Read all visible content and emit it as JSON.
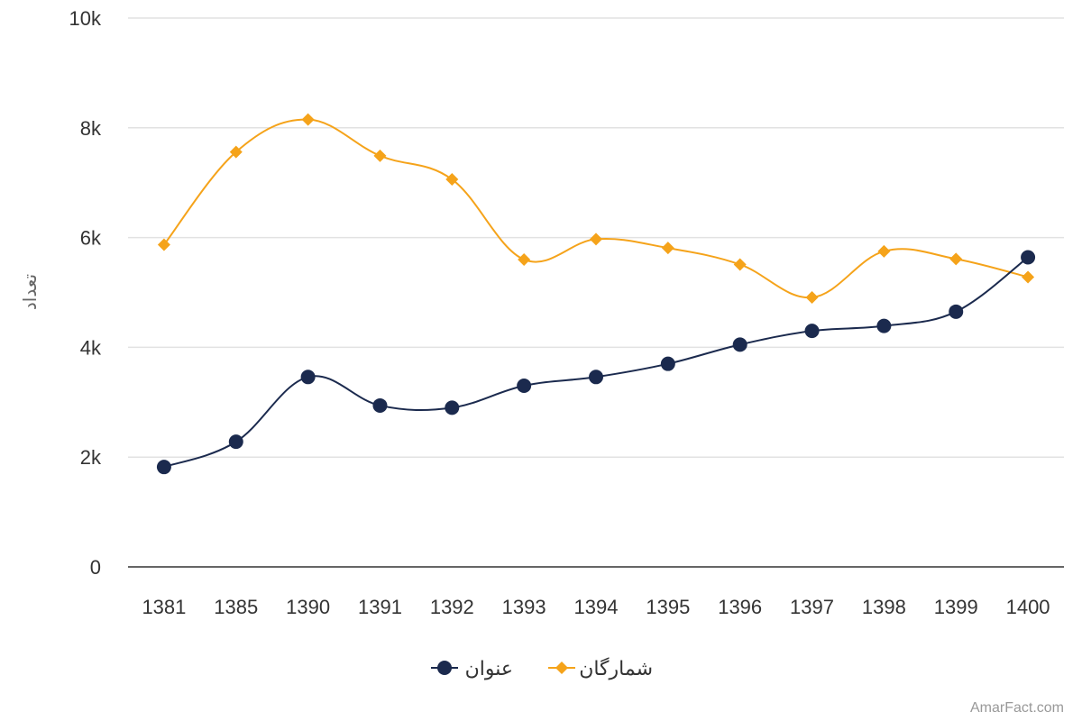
{
  "chart_data": {
    "type": "line",
    "title": "",
    "xlabel": "",
    "ylabel": "تعداد",
    "categories": [
      "1381",
      "1385",
      "1390",
      "1391",
      "1392",
      "1393",
      "1394",
      "1395",
      "1396",
      "1397",
      "1398",
      "1399",
      "1400"
    ],
    "series": [
      {
        "name": "عنوان",
        "color": "#1b2a4e",
        "marker": "circle",
        "values": [
          1820,
          2280,
          3460,
          2940,
          2900,
          3300,
          3460,
          3700,
          4050,
          4300,
          4390,
          4650,
          5640
        ]
      },
      {
        "name": "شمارگان",
        "color": "#f5a31a",
        "marker": "diamond",
        "values": [
          5870,
          7560,
          8150,
          7490,
          7060,
          5600,
          5970,
          5810,
          5510,
          4910,
          5750,
          5610,
          5280
        ]
      }
    ],
    "ylim": [
      0,
      10000
    ],
    "yticks": [
      "0",
      "2k",
      "4k",
      "6k",
      "8k",
      "10k"
    ],
    "ytick_values": [
      0,
      2000,
      4000,
      6000,
      8000,
      10000
    ],
    "grid": true,
    "legend": "bottom-center"
  },
  "credit": "AmarFact.com"
}
